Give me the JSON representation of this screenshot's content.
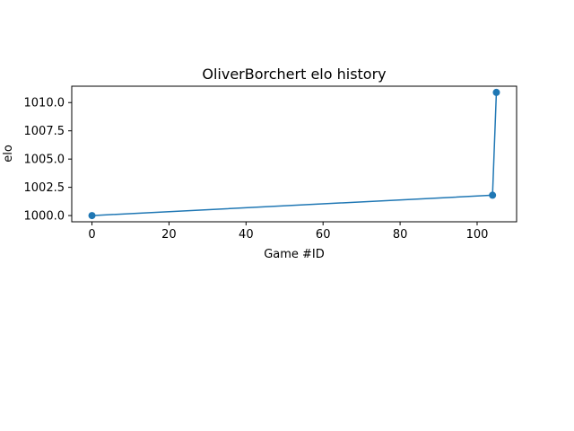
{
  "chart_data": {
    "type": "line",
    "title": "OliverBorchert elo history",
    "xlabel": "Game #ID",
    "ylabel": "elo",
    "xlim": [
      -5.25,
      110.25
    ],
    "ylim": [
      999.45,
      1011.45
    ],
    "xticks": [
      0,
      20,
      40,
      60,
      80,
      100
    ],
    "xtick_labels": [
      "0",
      "20",
      "40",
      "60",
      "80",
      "100"
    ],
    "yticks": [
      1000.0,
      1002.5,
      1005.0,
      1007.5,
      1010.0
    ],
    "ytick_labels": [
      "1000.0",
      "1002.5",
      "1005.0",
      "1007.5",
      "1010.0"
    ],
    "grid": false,
    "legend": "none",
    "series": [
      {
        "color": "#1f77b4",
        "marker": "circle",
        "x": [
          0,
          104,
          105
        ],
        "y": [
          1000.0,
          1001.8,
          1010.9
        ]
      }
    ]
  }
}
